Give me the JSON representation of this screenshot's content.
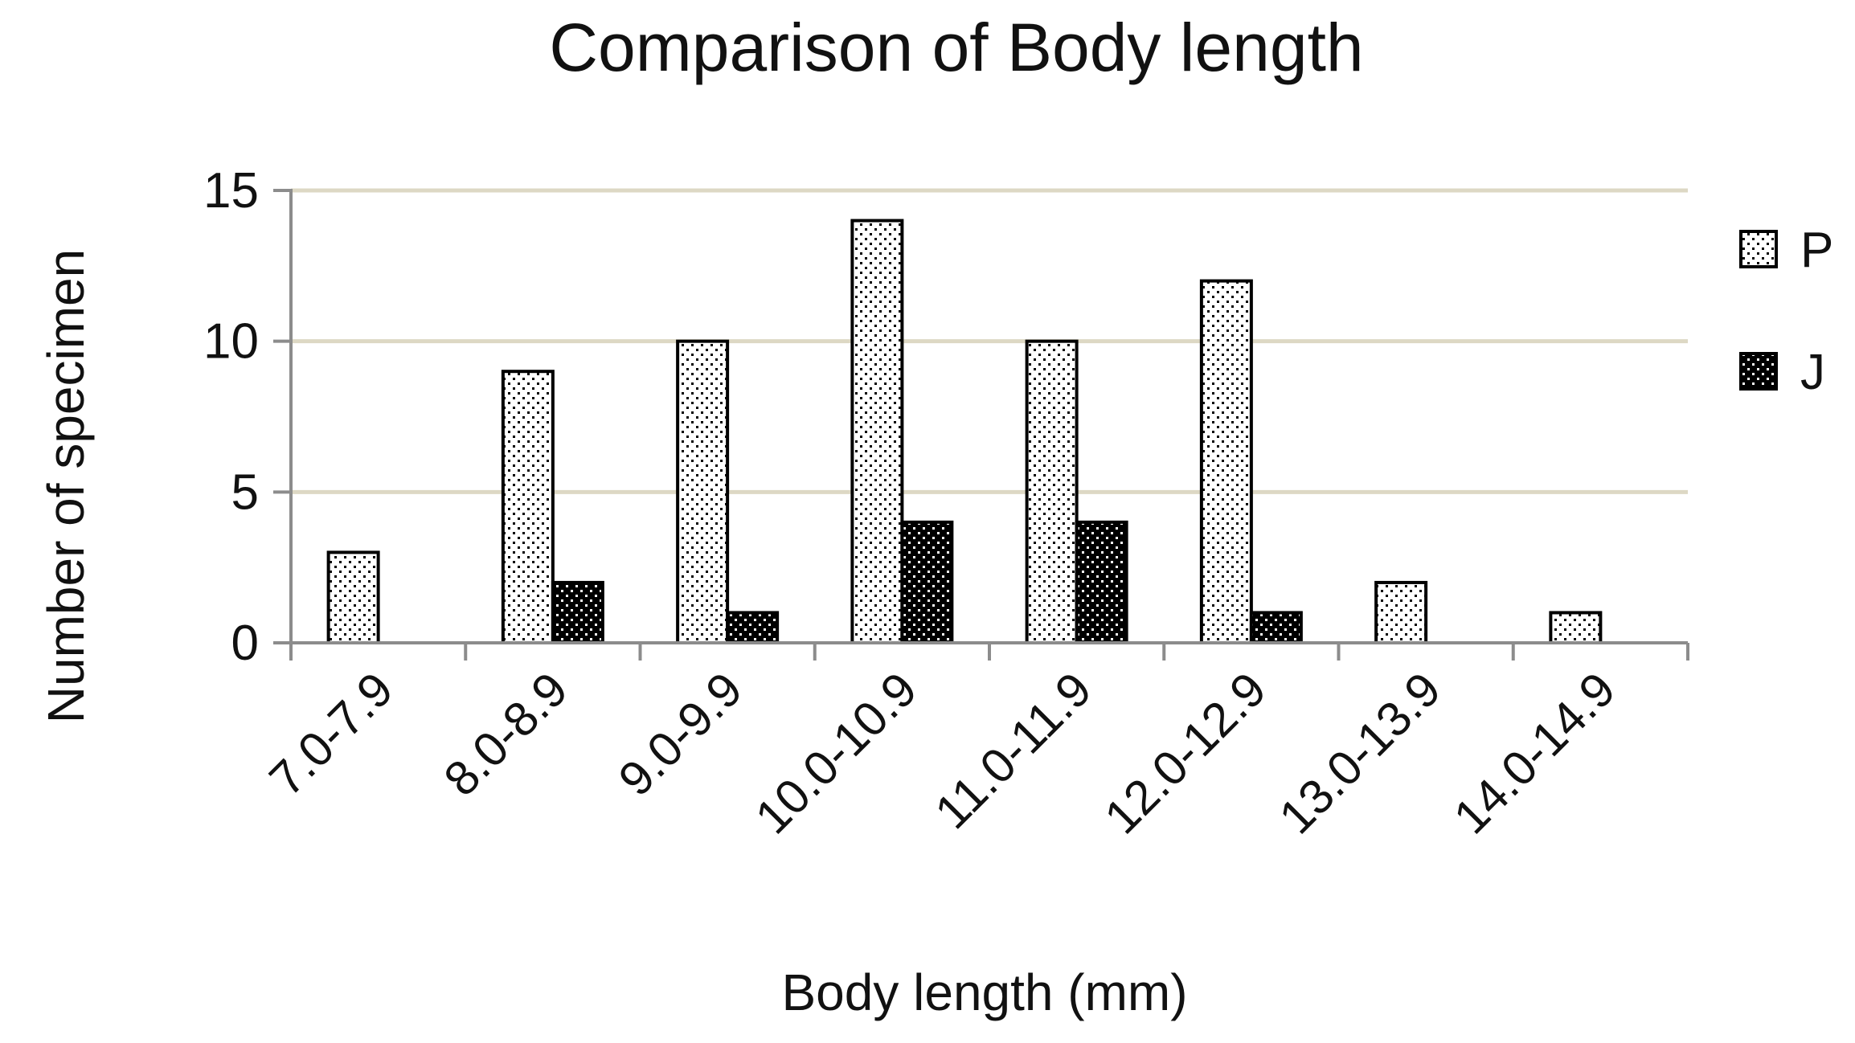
{
  "chart_data": {
    "type": "bar",
    "title": "Comparison of Body length",
    "xlabel": "Body length (mm)",
    "ylabel": "Number of specimen",
    "categories": [
      "7.0-7.9",
      "8.0-8.9",
      "9.0-9.9",
      "10.0-10.9",
      "11.0-11.9",
      "12.0-12.9",
      "13.0-13.9",
      "14.0-14.9"
    ],
    "series": [
      {
        "name": "P",
        "values": [
          3,
          9,
          10,
          14,
          10,
          12,
          2,
          1
        ],
        "pattern": "light-dotted"
      },
      {
        "name": "J",
        "values": [
          0,
          2,
          1,
          4,
          4,
          1,
          0,
          0
        ],
        "pattern": "dark-dotted"
      }
    ],
    "ylim": [
      0,
      15
    ],
    "yticks": [
      0,
      5,
      10,
      15
    ],
    "grid": true,
    "legend_position": "right",
    "colors": {
      "grid": "#ddd8c4",
      "axis": "#8c8c8c",
      "bar_outline": "#000000",
      "light_fill": "#ffffff",
      "dark_fill": "#000000"
    }
  }
}
